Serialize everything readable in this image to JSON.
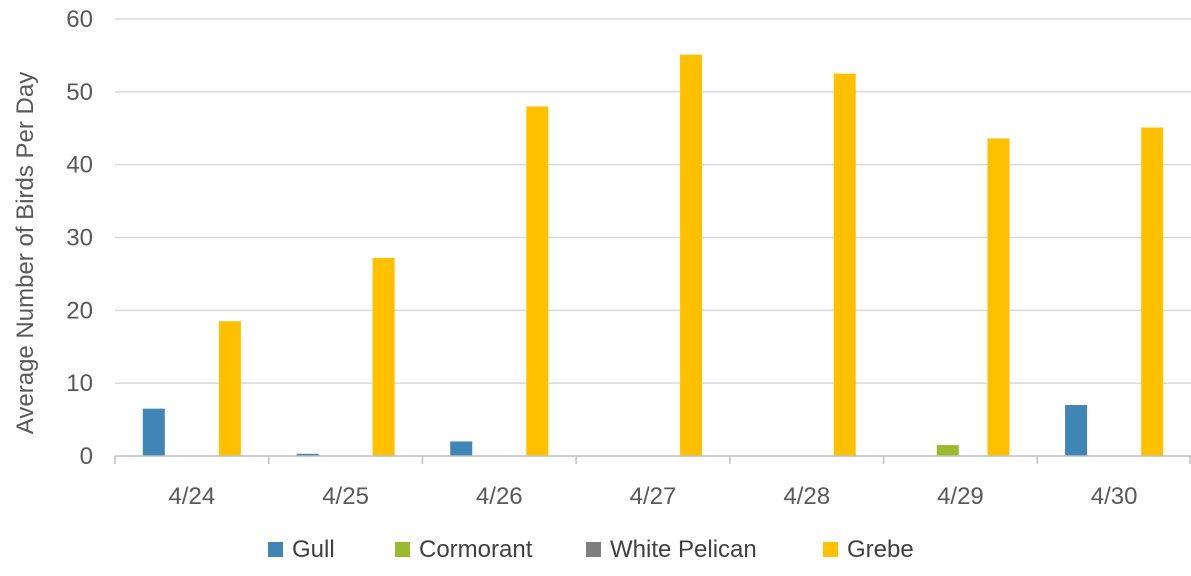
{
  "chart_data": {
    "type": "bar",
    "title": "",
    "xlabel": "",
    "ylabel": "Average Number of Birds Per Day",
    "ylim": [
      0,
      60
    ],
    "yticks": [
      0,
      10,
      20,
      30,
      40,
      50,
      60
    ],
    "grid": true,
    "legend_position": "bottom",
    "categories": [
      "4/24",
      "4/25",
      "4/26",
      "4/27",
      "4/28",
      "4/29",
      "4/30"
    ],
    "series": [
      {
        "name": "Gull",
        "color": "#3F85B5",
        "values": [
          6.5,
          0.3,
          2.0,
          0,
          0,
          0,
          7.0
        ]
      },
      {
        "name": "Cormorant",
        "color": "#9BBB2E",
        "values": [
          0,
          0,
          0,
          0,
          0,
          1.5,
          0
        ]
      },
      {
        "name": "White Pelican",
        "color": "#7F7F7F",
        "values": [
          0,
          0,
          0,
          0,
          0,
          0,
          0
        ]
      },
      {
        "name": "Grebe",
        "color": "#FFC000",
        "values": [
          18.5,
          27.2,
          48.0,
          55.1,
          52.5,
          43.6,
          45.1
        ]
      }
    ]
  }
}
